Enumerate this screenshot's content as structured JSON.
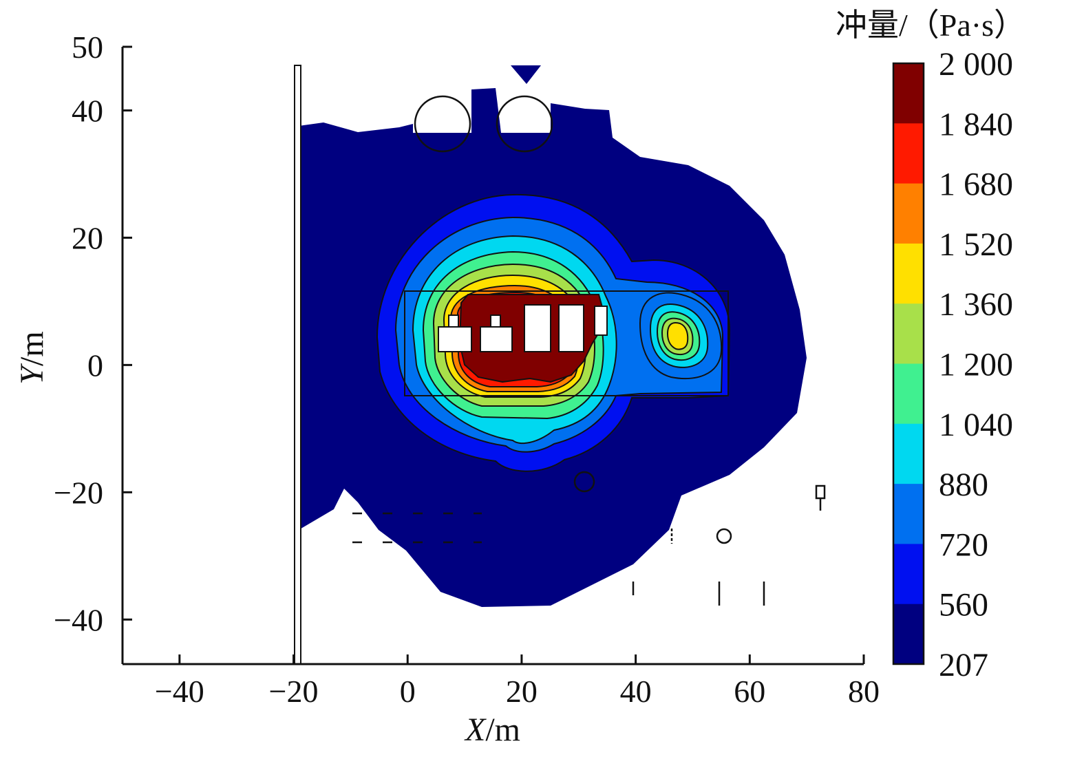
{
  "chart_data": {
    "type": "heatmap",
    "title": "",
    "xlabel": "X/m",
    "ylabel": "Y/m",
    "xlim": [
      -50,
      80
    ],
    "ylim": [
      -47,
      50
    ],
    "xticks": [
      -40,
      -20,
      0,
      20,
      40,
      60,
      80
    ],
    "yticks": [
      50,
      40,
      20,
      0,
      -20,
      -40
    ],
    "xtick_labels": [
      "−40",
      "−20",
      "0",
      "20",
      "40",
      "60",
      "80"
    ],
    "ytick_labels": [
      "50",
      "40",
      "20",
      "0",
      "−20",
      "−40"
    ],
    "grid": false,
    "colorbar": {
      "title": "冲量/（Pa·s）",
      "position": "right",
      "labels": [
        "2 000",
        "1 840",
        "1 680",
        "1 520",
        "1 360",
        "1 200",
        "1 040",
        "880",
        "720",
        "560",
        "207"
      ],
      "values": [
        2000,
        1840,
        1680,
        1520,
        1360,
        1200,
        1040,
        880,
        720,
        560,
        207
      ],
      "colors": [
        "#800000",
        "#ff1a00",
        "#ff8000",
        "#ffe000",
        "#a8e04a",
        "#40f090",
        "#00d8f0",
        "#0070f0",
        "#0010f0",
        "#000080"
      ]
    },
    "field": {
      "primary_source": {
        "x": 20,
        "y": 10,
        "peak": 2000
      },
      "secondary_source": {
        "x": 47,
        "y": 10,
        "peak": 1500
      },
      "background": 207
    }
  }
}
